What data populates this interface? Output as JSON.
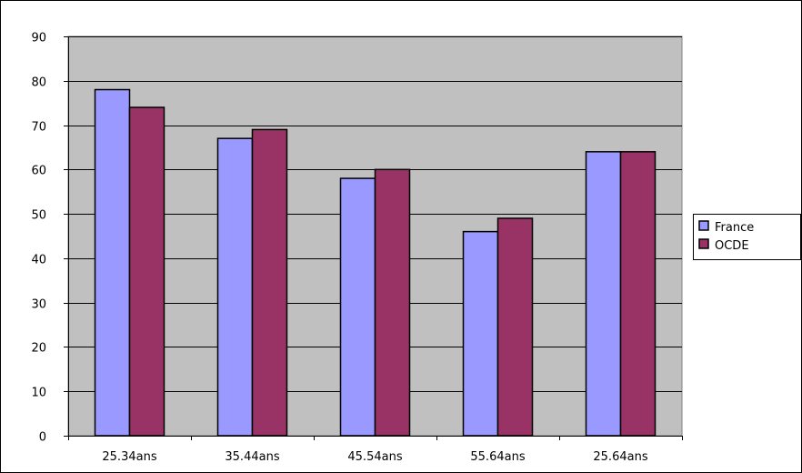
{
  "chart_data": {
    "type": "bar",
    "categories": [
      "25.34ans",
      "35.44ans",
      "45.54ans",
      "55.64ans",
      "25.64ans"
    ],
    "series": [
      {
        "name": "France",
        "values": [
          78,
          67,
          58,
          46,
          64
        ],
        "color": "#9999ff"
      },
      {
        "name": "OCDE",
        "values": [
          74,
          69,
          60,
          49,
          64
        ],
        "color": "#993366"
      }
    ],
    "ylim": [
      0,
      90
    ],
    "yticks": [
      0,
      10,
      20,
      30,
      40,
      50,
      60,
      70,
      80,
      90
    ],
    "title": "",
    "xlabel": "",
    "ylabel": "",
    "grid": true,
    "legend_position": "right",
    "plot_background": "#c0c0c0"
  }
}
